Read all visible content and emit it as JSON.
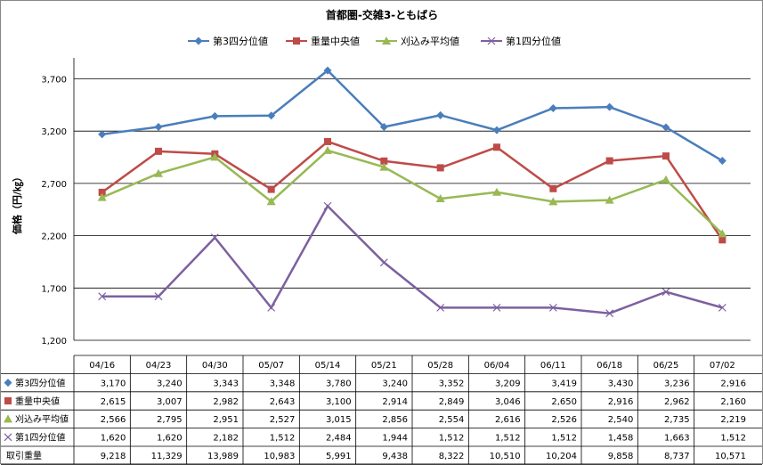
{
  "chart_data": {
    "type": "line",
    "title": "首都圏-交雑3-ともばら",
    "ylabel": "価格（円/㎏）",
    "ylim": [
      1200,
      3900
    ],
    "yticks": [
      1200,
      1700,
      2200,
      2700,
      3200,
      3700
    ],
    "ytick_labels": [
      "1,200",
      "1,700",
      "2,200",
      "2,700",
      "3,200",
      "3,700"
    ],
    "grid": true,
    "legend_position": "top",
    "categories": [
      "04/16",
      "04/23",
      "04/30",
      "05/07",
      "05/14",
      "05/21",
      "05/28",
      "06/04",
      "06/11",
      "06/18",
      "06/25",
      "07/02"
    ],
    "series": [
      {
        "name": "第3四分位値",
        "color": "#4a7ebb",
        "marker": "diamond",
        "values": [
          3170,
          3240,
          3343,
          3348,
          3780,
          3240,
          3352,
          3209,
          3419,
          3430,
          3236,
          2916
        ],
        "labels": [
          "3,170",
          "3,240",
          "3,343",
          "3,348",
          "3,780",
          "3,240",
          "3,352",
          "3,209",
          "3,419",
          "3,430",
          "3,236",
          "2,916"
        ]
      },
      {
        "name": "重量中央値",
        "color": "#be4b48",
        "marker": "square",
        "values": [
          2615,
          3007,
          2982,
          2643,
          3100,
          2914,
          2849,
          3046,
          2650,
          2916,
          2962,
          2160
        ],
        "labels": [
          "2,615",
          "3,007",
          "2,982",
          "2,643",
          "3,100",
          "2,914",
          "2,849",
          "3,046",
          "2,650",
          "2,916",
          "2,962",
          "2,160"
        ]
      },
      {
        "name": "刈込み平均値",
        "color": "#98b954",
        "marker": "triangle",
        "values": [
          2566,
          2795,
          2951,
          2527,
          3015,
          2856,
          2554,
          2616,
          2526,
          2540,
          2735,
          2219
        ],
        "labels": [
          "2,566",
          "2,795",
          "2,951",
          "2,527",
          "3,015",
          "2,856",
          "2,554",
          "2,616",
          "2,526",
          "2,540",
          "2,735",
          "2,219"
        ]
      },
      {
        "name": "第1四分位値",
        "color": "#7d60a0",
        "marker": "x",
        "values": [
          1620,
          1620,
          2182,
          1512,
          2484,
          1944,
          1512,
          1512,
          1512,
          1458,
          1663,
          1512
        ],
        "labels": [
          "1,620",
          "1,620",
          "2,182",
          "1,512",
          "2,484",
          "1,944",
          "1,512",
          "1,512",
          "1,512",
          "1,458",
          "1,663",
          "1,512"
        ]
      }
    ],
    "extra_row": {
      "name": "取引重量",
      "values": [
        9218,
        11329,
        13989,
        10983,
        5991,
        9438,
        8322,
        10510,
        10204,
        9858,
        8737,
        10571
      ],
      "labels": [
        "9,218",
        "11,329",
        "13,989",
        "10,983",
        "5,991",
        "9,438",
        "8,322",
        "10,510",
        "10,204",
        "9,858",
        "8,737",
        "10,571"
      ]
    }
  }
}
